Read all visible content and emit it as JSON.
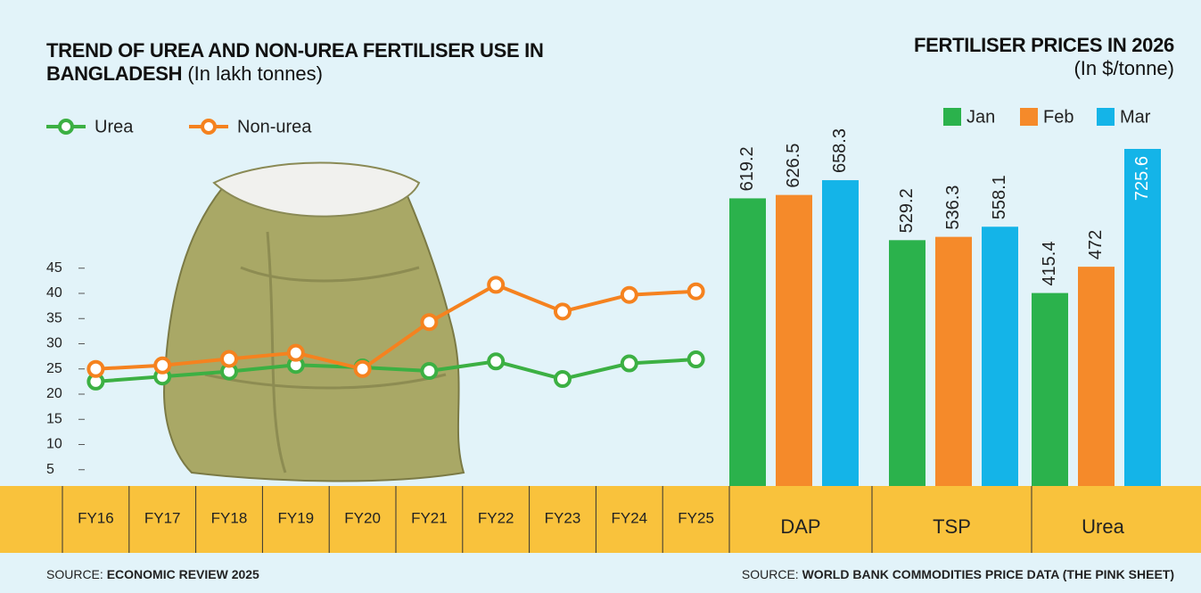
{
  "chart_data": [
    {
      "type": "line",
      "title": "TREND OF UREA AND NON-UREA FERTILISER USE IN BANGLADESH",
      "subtitle": "(In lakh tonnes)",
      "categories": [
        "FY16",
        "FY17",
        "FY18",
        "FY19",
        "FY20",
        "FY21",
        "FY22",
        "FY23",
        "FY24",
        "FY25"
      ],
      "series": [
        {
          "name": "Urea",
          "color": "#3cb043",
          "values": [
            22.5,
            23.5,
            24.5,
            25.8,
            25.3,
            24.6,
            26.5,
            23,
            26.1,
            26.9
          ]
        },
        {
          "name": "Non-urea",
          "color": "#f5821f",
          "values": [
            25,
            25.7,
            27,
            28.2,
            25,
            34.3,
            41.7,
            36.4,
            39.7,
            40.4
          ]
        }
      ],
      "ylim": [
        0,
        50
      ],
      "yticks": [
        5,
        10,
        15,
        20,
        25,
        30,
        35,
        40,
        45
      ],
      "source_label": "SOURCE:",
      "source": "ECONOMIC REVIEW 2025"
    },
    {
      "type": "bar",
      "title": "FERTILISER PRICES IN 2026",
      "subtitle": "(In $/tonne)",
      "categories": [
        "DAP",
        "TSP",
        "Urea"
      ],
      "series": [
        {
          "name": "Jan",
          "color": "#2bb24c",
          "values": [
            619.2,
            529.2,
            415.4
          ]
        },
        {
          "name": "Feb",
          "color": "#f58a2a",
          "values": [
            626.5,
            536.3,
            472
          ]
        },
        {
          "name": "Mar",
          "color": "#14b4e8",
          "values": [
            658.3,
            558.1,
            725.6
          ]
        }
      ],
      "ylim": [
        0,
        760
      ],
      "source_label": "SOURCE:",
      "source": "WORLD BANK COMMODITIES PRICE DATA (THE PINK SHEET)"
    }
  ]
}
